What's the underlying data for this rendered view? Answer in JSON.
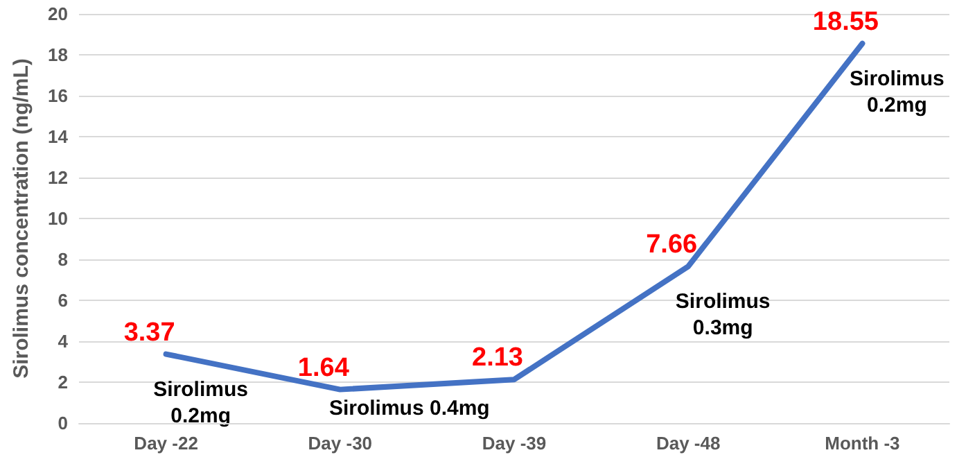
{
  "chart_data": {
    "type": "line",
    "ylabel": "Sirolimus concentration (ng/mL)",
    "categories": [
      "Day -22",
      "Day -30",
      "Day -39",
      "Day -48",
      "Month -3"
    ],
    "series": [
      {
        "color": "#4472c4",
        "values": [
          3.37,
          1.64,
          2.13,
          7.66,
          18.55
        ]
      }
    ],
    "ylim": [
      0,
      20
    ],
    "yticks": [
      0,
      2,
      4,
      6,
      8,
      10,
      12,
      14,
      16,
      18,
      20
    ],
    "grid": "y",
    "data_labels": true,
    "marker": "none",
    "line_style": "solid",
    "annotations": [
      {
        "text": "Sirolimus\n0.2mg",
        "x": "Day -22",
        "y": 3.37
      },
      {
        "text": "Sirolimus 0.4mg",
        "x": "Day -30",
        "y": 1.64
      },
      {
        "text": "Sirolimus\n0.3mg",
        "x": "Day -48",
        "y": 7.66
      },
      {
        "text": "Sirolimus\n0.2mg",
        "x": "Month -3",
        "y": 18.55
      }
    ]
  }
}
